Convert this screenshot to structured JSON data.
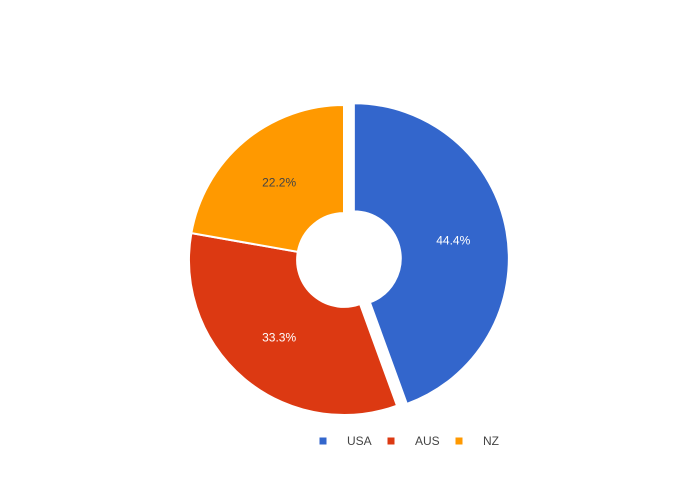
{
  "chart_data": {
    "type": "pie",
    "hole": 0.55,
    "title": "",
    "labels": [
      "USA",
      "AUS",
      "NZ"
    ],
    "values": [
      44.4,
      33.3,
      22.2
    ],
    "text_labels": [
      "44.4%",
      "33.3%",
      "22.2%"
    ],
    "colors": [
      "#3366cc",
      "#dc3912",
      "#ff9900"
    ],
    "label_colors": [
      "#ffffff",
      "#ffffff",
      "#444444"
    ],
    "pulled_slice": "USA",
    "start_angle_deg": 0,
    "direction": "clockwise",
    "legend": {
      "orientation": "horizontal",
      "placement": "bottom-center",
      "items": [
        {
          "label": "USA",
          "color": "#3366cc"
        },
        {
          "label": "AUS",
          "color": "#dc3912"
        },
        {
          "label": "NZ",
          "color": "#ff9900"
        }
      ]
    }
  }
}
